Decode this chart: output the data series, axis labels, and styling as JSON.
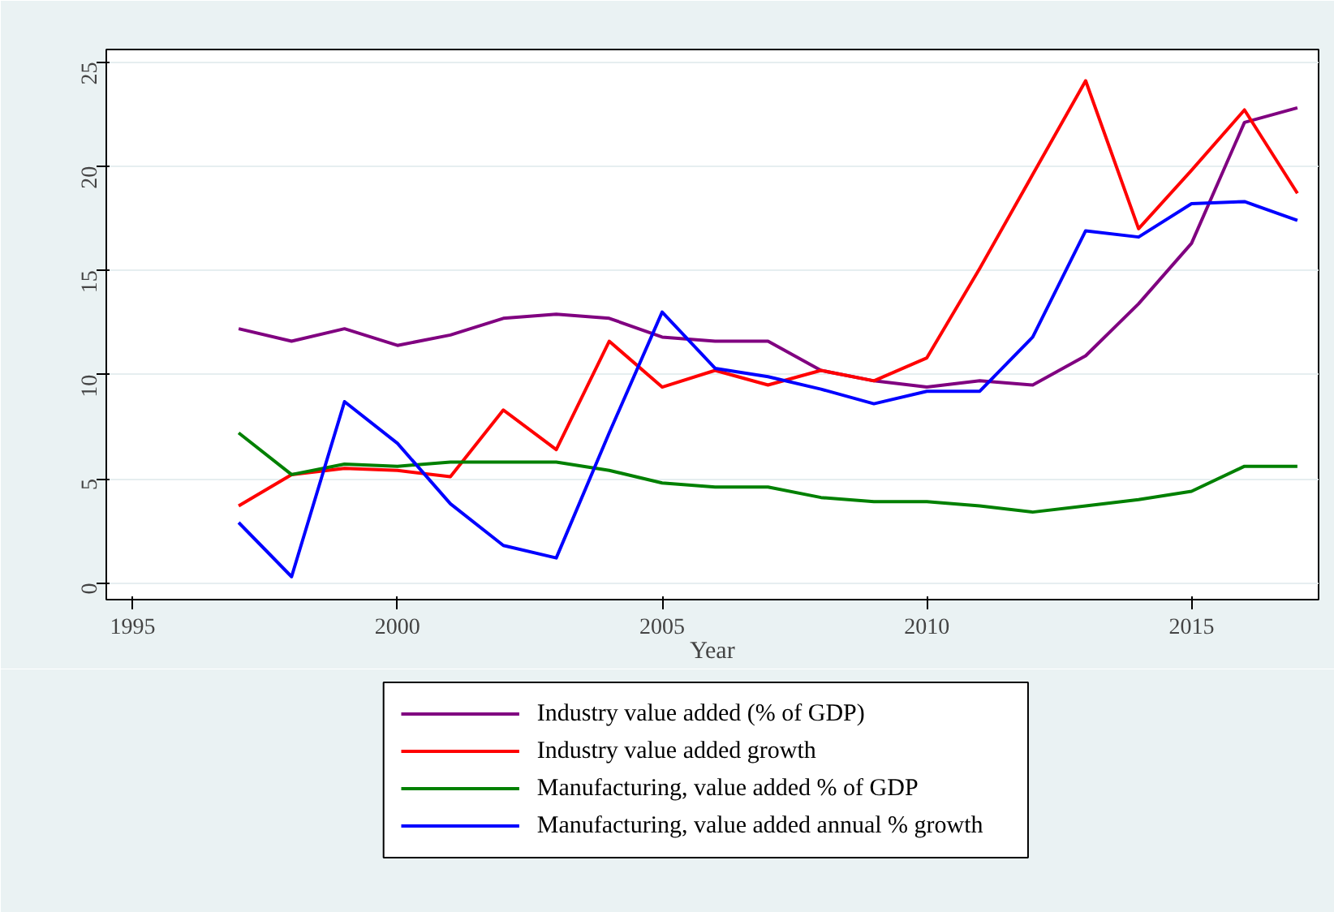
{
  "chart_data": {
    "type": "line",
    "xlabel": "Year",
    "x": [
      1997,
      1998,
      1999,
      2000,
      2001,
      2002,
      2003,
      2004,
      2005,
      2006,
      2007,
      2008,
      2009,
      2010,
      2011,
      2012,
      2013,
      2014,
      2015,
      2016,
      2017
    ],
    "series": [
      {
        "name": "Industry  value added (% of GDP)",
        "color": "#800080",
        "values": [
          12.2,
          11.6,
          12.2,
          11.4,
          11.9,
          12.7,
          12.9,
          12.7,
          11.8,
          11.6,
          11.6,
          10.2,
          9.7,
          9.4,
          9.7,
          9.5,
          10.9,
          13.4,
          16.3,
          22.1,
          22.8
        ]
      },
      {
        "name": "Industry value added  growth",
        "color": "#ff0000",
        "values": [
          3.7,
          5.2,
          5.5,
          5.4,
          5.1,
          8.3,
          6.4,
          11.6,
          9.4,
          10.2,
          9.5,
          10.2,
          9.7,
          10.8,
          15.1,
          19.6,
          24.1,
          17.0,
          19.8,
          22.7,
          18.7
        ]
      },
      {
        "name": "Manufacturing, value added % of GDP",
        "color": "#008000",
        "values": [
          7.2,
          5.2,
          5.7,
          5.6,
          5.8,
          5.8,
          5.8,
          5.4,
          4.8,
          4.6,
          4.6,
          4.1,
          3.9,
          3.9,
          3.7,
          3.4,
          3.7,
          4.0,
          4.4,
          5.6,
          5.6
        ]
      },
      {
        "name": "Manufacturing, value added annual % growth",
        "color": "#0000ff",
        "values": [
          2.9,
          0.3,
          8.7,
          6.7,
          3.8,
          1.8,
          1.2,
          7.2,
          13.0,
          10.3,
          9.9,
          9.3,
          8.6,
          9.2,
          9.2,
          11.8,
          16.9,
          16.6,
          18.2,
          18.3,
          17.4
        ]
      }
    ],
    "xlim": [
      1994.5,
      2017.4
    ],
    "ylim": [
      -0.8,
      25.6
    ],
    "xticks": [
      1995,
      2000,
      2005,
      2010,
      2015
    ],
    "yticks": [
      0,
      5,
      10,
      15,
      20,
      25
    ],
    "grid": "y",
    "legend": "bottom",
    "line_style": "solid"
  }
}
